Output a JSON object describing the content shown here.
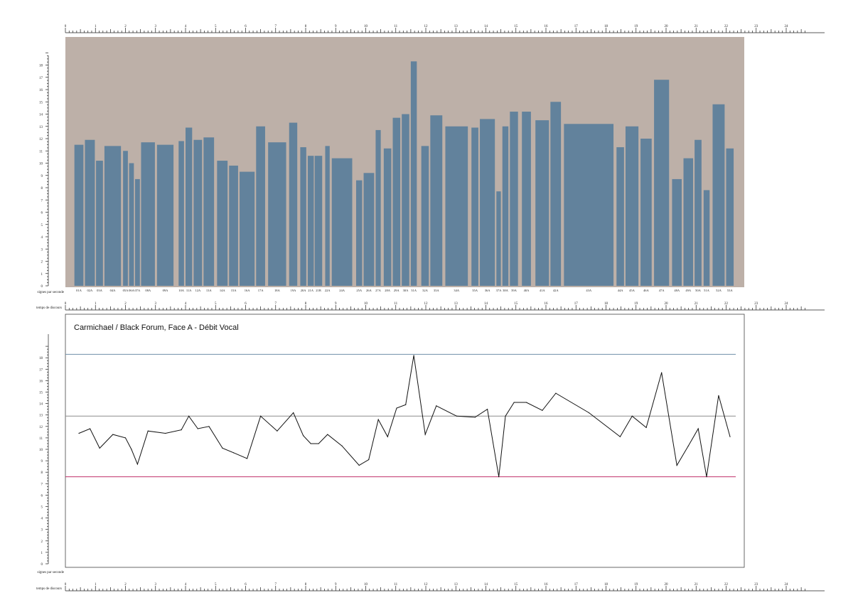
{
  "chart_data": [
    {
      "type": "bar",
      "ylabel": "signes par seconde",
      "xlabel": "temps de discours",
      "ylim": [
        0,
        19
      ],
      "xlim": [
        0,
        24
      ],
      "y_ticks": [
        "0",
        "1",
        "2",
        "3",
        "4",
        "5",
        "6",
        "7",
        "8",
        "9",
        "10",
        "11",
        "12",
        "13",
        "14",
        "15",
        "16",
        "17",
        "18"
      ],
      "x_ticks": [
        "0",
        "1",
        "2",
        "3",
        "4",
        "5",
        "6",
        "7",
        "8",
        "9",
        "10",
        "11",
        "12",
        "13",
        "14",
        "15",
        "16",
        "17",
        "18",
        "19",
        "20",
        "21",
        "22",
        "23",
        "24"
      ],
      "colors": {
        "background": "#bdb0a8",
        "bar": "#62829c"
      },
      "bars": [
        {
          "label": "01A",
          "x0": 0.3,
          "x1": 0.6,
          "value": 11.5
        },
        {
          "label": "02A",
          "x0": 0.65,
          "x1": 0.98,
          "value": 11.9
        },
        {
          "label": "03A",
          "x0": 1.02,
          "x1": 1.25,
          "value": 10.2
        },
        {
          "label": "04A",
          "x0": 1.3,
          "x1": 1.85,
          "value": 11.4
        },
        {
          "label": "05A",
          "x0": 1.92,
          "x1": 2.08,
          "value": 11.0
        },
        {
          "label": "06A",
          "x0": 2.12,
          "x1": 2.28,
          "value": 10.0
        },
        {
          "label": "07A",
          "x0": 2.32,
          "x1": 2.48,
          "value": 8.7
        },
        {
          "label": "08A",
          "x0": 2.52,
          "x1": 2.98,
          "value": 11.7
        },
        {
          "label": "09A",
          "x0": 3.05,
          "x1": 3.6,
          "value": 11.5
        },
        {
          "label": "10A",
          "x0": 3.77,
          "x1": 3.95,
          "value": 11.8
        },
        {
          "label": "11A",
          "x0": 4.0,
          "x1": 4.22,
          "value": 12.9
        },
        {
          "label": "12A",
          "x0": 4.27,
          "x1": 4.55,
          "value": 11.9
        },
        {
          "label": "13A",
          "x0": 4.6,
          "x1": 4.95,
          "value": 12.1
        },
        {
          "label": "14A",
          "x0": 5.05,
          "x1": 5.4,
          "value": 10.2
        },
        {
          "label": "15A",
          "x0": 5.45,
          "x1": 5.75,
          "value": 9.8
        },
        {
          "label": "16A",
          "x0": 5.8,
          "x1": 6.3,
          "value": 9.3
        },
        {
          "label": "17A",
          "x0": 6.35,
          "x1": 6.65,
          "value": 13.0
        },
        {
          "label": "18A",
          "x0": 6.75,
          "x1": 7.35,
          "value": 11.7
        },
        {
          "label": "19A",
          "x0": 7.45,
          "x1": 7.72,
          "value": 13.3
        },
        {
          "label": "20A",
          "x0": 7.82,
          "x1": 8.02,
          "value": 11.3
        },
        {
          "label": "21A",
          "x0": 8.07,
          "x1": 8.27,
          "value": 10.6
        },
        {
          "label": "21B",
          "x0": 8.3,
          "x1": 8.55,
          "value": 10.6
        },
        {
          "label": "22A",
          "x0": 8.65,
          "x1": 8.8,
          "value": 11.4
        },
        {
          "label": "24A",
          "x0": 8.87,
          "x1": 9.55,
          "value": 10.4
        },
        {
          "label": "25A",
          "x0": 9.68,
          "x1": 9.88,
          "value": 8.6
        },
        {
          "label": "26A",
          "x0": 9.93,
          "x1": 10.28,
          "value": 9.2
        },
        {
          "label": "27A",
          "x0": 10.33,
          "x1": 10.5,
          "value": 12.7
        },
        {
          "label": "28A",
          "x0": 10.6,
          "x1": 10.85,
          "value": 11.2
        },
        {
          "label": "29A",
          "x0": 10.9,
          "x1": 11.15,
          "value": 13.7
        },
        {
          "label": "30A",
          "x0": 11.2,
          "x1": 11.45,
          "value": 14.0
        },
        {
          "label": "31A",
          "x0": 11.5,
          "x1": 11.7,
          "value": 18.3
        },
        {
          "label": "32A",
          "x0": 11.85,
          "x1": 12.1,
          "value": 11.4
        },
        {
          "label": "33A",
          "x0": 12.15,
          "x1": 12.55,
          "value": 13.9
        },
        {
          "label": "34A",
          "x0": 12.65,
          "x1": 13.4,
          "value": 13.0
        },
        {
          "label": "35A",
          "x0": 13.52,
          "x1": 13.75,
          "value": 12.9
        },
        {
          "label": "36A",
          "x0": 13.8,
          "x1": 14.3,
          "value": 13.6
        },
        {
          "label": "37A",
          "x0": 14.35,
          "x1": 14.5,
          "value": 7.7
        },
        {
          "label": "38A",
          "x0": 14.55,
          "x1": 14.75,
          "value": 13.0
        },
        {
          "label": "39A",
          "x0": 14.8,
          "x1": 15.07,
          "value": 14.2
        },
        {
          "label": "40A",
          "x0": 15.2,
          "x1": 15.5,
          "value": 14.2
        },
        {
          "label": "41A",
          "x0": 15.65,
          "x1": 16.1,
          "value": 13.5
        },
        {
          "label": "42A",
          "x0": 16.15,
          "x1": 16.5,
          "value": 15.0
        },
        {
          "label": "43A",
          "x0": 16.6,
          "x1": 18.25,
          "value": 13.2
        },
        {
          "label": "44A",
          "x0": 18.35,
          "x1": 18.6,
          "value": 11.3
        },
        {
          "label": "45A",
          "x0": 18.65,
          "x1": 19.08,
          "value": 13.0
        },
        {
          "label": "46A",
          "x0": 19.15,
          "x1": 19.52,
          "value": 12.0
        },
        {
          "label": "47A",
          "x0": 19.6,
          "x1": 20.1,
          "value": 16.8
        },
        {
          "label": "48A",
          "x0": 20.2,
          "x1": 20.52,
          "value": 8.7
        },
        {
          "label": "49A",
          "x0": 20.58,
          "x1": 20.9,
          "value": 10.4
        },
        {
          "label": "50A",
          "x0": 20.95,
          "x1": 21.18,
          "value": 11.9
        },
        {
          "label": "51A",
          "x0": 21.25,
          "x1": 21.45,
          "value": 7.8
        },
        {
          "label": "52A",
          "x0": 21.55,
          "x1": 21.95,
          "value": 14.8
        },
        {
          "label": "53A",
          "x0": 22.0,
          "x1": 22.25,
          "value": 11.2
        }
      ]
    },
    {
      "type": "line",
      "title": "Carmichael / Black Forum, Face A - Débit Vocal",
      "ylabel": "signes par seconde",
      "xlabel": "temps de discours",
      "ylim": [
        0,
        19
      ],
      "xlim": [
        0,
        24
      ],
      "y_ticks": [
        "0",
        "1",
        "2",
        "3",
        "4",
        "5",
        "6",
        "7",
        "8",
        "9",
        "10",
        "11",
        "12",
        "13",
        "14",
        "15",
        "16",
        "17",
        "18"
      ],
      "x_ticks": [
        "0",
        "1",
        "2",
        "3",
        "4",
        "5",
        "6",
        "7",
        "8",
        "9",
        "10",
        "11",
        "12",
        "13",
        "14",
        "15",
        "16",
        "17",
        "18",
        "19",
        "20",
        "21",
        "22",
        "23",
        "24"
      ],
      "reference_lines": [
        {
          "value": 18.3,
          "color": "#6f8fa8"
        },
        {
          "value": 12.9,
          "color": "#8c8c8c"
        },
        {
          "value": 7.6,
          "color": "#c0306a"
        }
      ],
      "series": [
        {
          "color": "#111111",
          "points": [
            [
              0.45,
              11.4
            ],
            [
              0.82,
              11.8
            ],
            [
              1.14,
              10.1
            ],
            [
              1.58,
              11.3
            ],
            [
              2.0,
              11.0
            ],
            [
              2.2,
              10.0
            ],
            [
              2.4,
              8.7
            ],
            [
              2.75,
              11.6
            ],
            [
              3.33,
              11.4
            ],
            [
              3.86,
              11.7
            ],
            [
              4.11,
              12.9
            ],
            [
              4.41,
              11.8
            ],
            [
              4.78,
              12.0
            ],
            [
              5.23,
              10.1
            ],
            [
              5.6,
              9.7
            ],
            [
              6.05,
              9.2
            ],
            [
              6.5,
              12.9
            ],
            [
              7.05,
              11.6
            ],
            [
              7.59,
              13.2
            ],
            [
              7.92,
              11.2
            ],
            [
              8.17,
              10.5
            ],
            [
              8.43,
              10.5
            ],
            [
              8.73,
              11.3
            ],
            [
              9.21,
              10.3
            ],
            [
              9.78,
              8.6
            ],
            [
              10.1,
              9.1
            ],
            [
              10.42,
              12.6
            ],
            [
              10.73,
              11.1
            ],
            [
              11.03,
              13.6
            ],
            [
              11.33,
              13.9
            ],
            [
              11.6,
              18.2
            ],
            [
              11.98,
              11.3
            ],
            [
              12.35,
              13.8
            ],
            [
              13.03,
              12.9
            ],
            [
              13.64,
              12.8
            ],
            [
              14.05,
              13.5
            ],
            [
              14.43,
              7.6
            ],
            [
              14.65,
              12.9
            ],
            [
              14.94,
              14.1
            ],
            [
              15.35,
              14.1
            ],
            [
              15.88,
              13.4
            ],
            [
              16.33,
              14.9
            ],
            [
              17.43,
              13.2
            ],
            [
              18.47,
              11.1
            ],
            [
              18.87,
              12.9
            ],
            [
              19.34,
              11.9
            ],
            [
              19.85,
              16.7
            ],
            [
              20.36,
              8.6
            ],
            [
              20.74,
              10.3
            ],
            [
              21.07,
              11.8
            ],
            [
              21.35,
              7.6
            ],
            [
              21.75,
              14.7
            ],
            [
              22.13,
              11.1
            ]
          ]
        }
      ]
    }
  ]
}
